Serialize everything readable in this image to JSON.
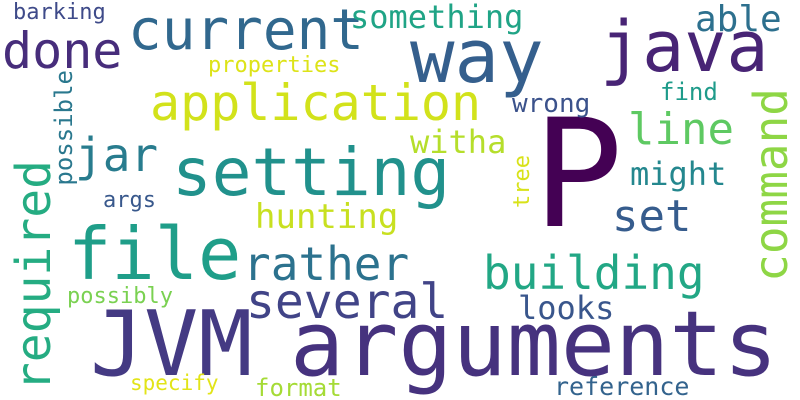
{
  "words": [
    {
      "text": "P",
      "color": "#440154"
    },
    {
      "text": "JVM",
      "color": "#443a83"
    },
    {
      "text": "arguments",
      "color": "#46327e"
    },
    {
      "text": "setting",
      "color": "#21918c"
    },
    {
      "text": "file",
      "color": "#1f9e89"
    },
    {
      "text": "way",
      "color": "#355f8d"
    },
    {
      "text": "java",
      "color": "#482475"
    },
    {
      "text": "application",
      "color": "#d2e21b"
    },
    {
      "text": "current",
      "color": "#31688e"
    },
    {
      "text": "done",
      "color": "#472d7b"
    },
    {
      "text": "building",
      "color": "#22a785"
    },
    {
      "text": "several",
      "color": "#414487"
    },
    {
      "text": "rather",
      "color": "#2c728e"
    },
    {
      "text": "required",
      "color": "#25ac82"
    },
    {
      "text": "command",
      "color": "#8ed645"
    },
    {
      "text": "line",
      "color": "#5ec962"
    },
    {
      "text": "set",
      "color": "#365c8d"
    },
    {
      "text": "jar",
      "color": "#287c8e"
    },
    {
      "text": "hunting",
      "color": "#c8e020"
    },
    {
      "text": "something",
      "color": "#20a486"
    },
    {
      "text": "able",
      "color": "#2d708e"
    },
    {
      "text": "might",
      "color": "#24878e"
    },
    {
      "text": "witha",
      "color": "#b5de2b"
    },
    {
      "text": "looks",
      "color": "#39568c"
    },
    {
      "text": "wrong",
      "color": "#3b528b"
    },
    {
      "text": "find",
      "color": "#1e9b8a"
    },
    {
      "text": "reference",
      "color": "#33638d"
    },
    {
      "text": "format",
      "color": "#a5db36"
    },
    {
      "text": "specify",
      "color": "#e2e418"
    },
    {
      "text": "properties",
      "color": "#dde318"
    },
    {
      "text": "possibly",
      "color": "#7ad151"
    },
    {
      "text": "possible",
      "color": "#2a788e"
    },
    {
      "text": "args",
      "color": "#38588c"
    },
    {
      "text": "barking",
      "color": "#3e4a89"
    },
    {
      "text": "tree",
      "color": "#d8e219"
    }
  ]
}
